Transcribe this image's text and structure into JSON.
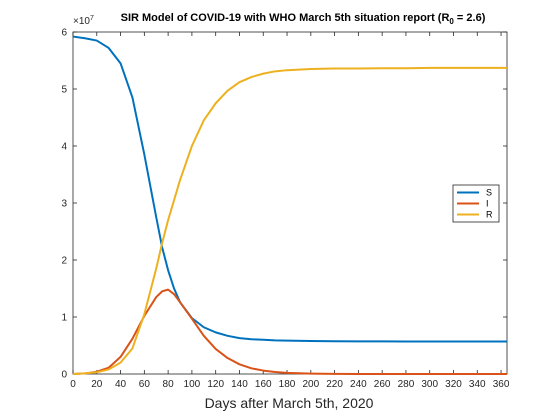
{
  "chart_data": {
    "type": "line",
    "title": "SIR Model of COVID-19 with WHO March 5th situation report (R",
    "title_subscript": "0",
    "title_suffix": " = 2.6)",
    "xlabel": "Days after March 5th, 2020",
    "ylabel": "",
    "y_exponent_base": "×10",
    "y_exponent_power": "7",
    "xlim": [
      0,
      365
    ],
    "ylim": [
      0,
      6
    ],
    "xticks": [
      0,
      20,
      40,
      60,
      80,
      100,
      120,
      140,
      160,
      180,
      200,
      220,
      240,
      260,
      280,
      300,
      320,
      340,
      360
    ],
    "yticks": [
      0,
      1,
      2,
      3,
      4,
      5,
      6
    ],
    "grid": false,
    "legend_position": "right",
    "x": [
      0,
      10,
      20,
      30,
      40,
      50,
      60,
      70,
      75,
      80,
      85,
      90,
      100,
      110,
      120,
      130,
      140,
      150,
      160,
      170,
      180,
      200,
      220,
      240,
      260,
      280,
      300,
      320,
      340,
      365
    ],
    "series": [
      {
        "name": "S",
        "color": "#0072BD",
        "values": [
          5.92,
          5.89,
          5.85,
          5.72,
          5.45,
          4.85,
          3.85,
          2.75,
          2.22,
          1.82,
          1.5,
          1.26,
          0.98,
          0.82,
          0.73,
          0.67,
          0.63,
          0.61,
          0.6,
          0.59,
          0.585,
          0.58,
          0.575,
          0.573,
          0.572,
          0.571,
          0.571,
          0.57,
          0.57,
          0.57
        ]
      },
      {
        "name": "I",
        "color": "#D95319",
        "values": [
          0.0,
          0.01,
          0.04,
          0.11,
          0.3,
          0.62,
          1.02,
          1.35,
          1.45,
          1.48,
          1.4,
          1.26,
          0.97,
          0.67,
          0.44,
          0.28,
          0.17,
          0.1,
          0.06,
          0.035,
          0.02,
          0.007,
          0.003,
          0.001,
          0.0,
          0.0,
          0.0,
          0.0,
          0.0,
          0.0
        ]
      },
      {
        "name": "R",
        "color": "#EDB120",
        "values": [
          0.0,
          0.01,
          0.03,
          0.08,
          0.2,
          0.45,
          1.05,
          1.85,
          2.3,
          2.7,
          3.05,
          3.4,
          4.0,
          4.45,
          4.75,
          4.97,
          5.12,
          5.21,
          5.27,
          5.31,
          5.33,
          5.35,
          5.36,
          5.36,
          5.365,
          5.365,
          5.37,
          5.37,
          5.37,
          5.37
        ]
      }
    ]
  }
}
